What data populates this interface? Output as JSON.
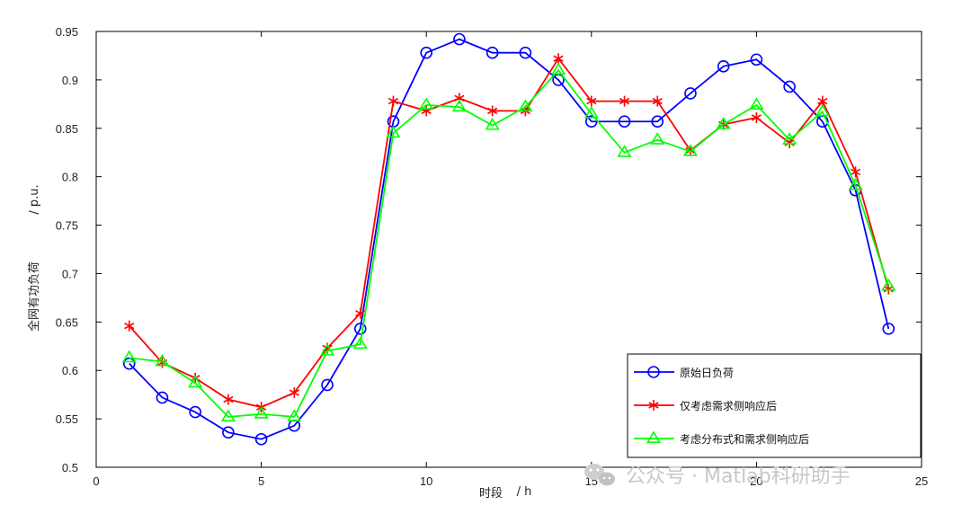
{
  "chart_data": {
    "type": "line",
    "xlabel_main": "时段",
    "xlabel_unit": "/ h",
    "ylabel_main": "全网有功负荷",
    "ylabel_unit": "/ p.u.",
    "xlim": [
      0,
      25
    ],
    "ylim": [
      0.5,
      0.95
    ],
    "xticks": [
      0,
      5,
      10,
      15,
      20,
      25
    ],
    "xtick_labels": [
      "0",
      "5",
      "10",
      "15",
      "20",
      "25"
    ],
    "yticks": [
      0.5,
      0.55,
      0.6,
      0.65,
      0.7,
      0.75,
      0.8,
      0.85,
      0.9,
      0.95
    ],
    "ytick_labels": [
      "0.5",
      "0.55",
      "0.6",
      "0.65",
      "0.7",
      "0.75",
      "0.8",
      "0.85",
      "0.9",
      "0.95"
    ],
    "grid": false,
    "legend_position": "bottom-right",
    "x": [
      1,
      2,
      3,
      4,
      5,
      6,
      7,
      8,
      9,
      10,
      11,
      12,
      13,
      14,
      15,
      16,
      17,
      18,
      19,
      20,
      21,
      22,
      23,
      24
    ],
    "series": [
      {
        "name": "原始日负荷",
        "color": "#0000ff",
        "marker": "circle",
        "values": [
          0.607,
          0.572,
          0.557,
          0.536,
          0.529,
          0.543,
          0.585,
          0.643,
          0.857,
          0.928,
          0.942,
          0.928,
          0.928,
          0.9,
          0.857,
          0.857,
          0.857,
          0.886,
          0.914,
          0.921,
          0.893,
          0.857,
          0.786,
          0.643
        ]
      },
      {
        "name": "仅考虑需求侧响应后",
        "color": "#ff0000",
        "marker": "asterisk",
        "values": [
          0.646,
          0.608,
          0.592,
          0.57,
          0.562,
          0.577,
          0.623,
          0.659,
          0.878,
          0.868,
          0.881,
          0.868,
          0.868,
          0.922,
          0.878,
          0.878,
          0.878,
          0.827,
          0.854,
          0.861,
          0.835,
          0.878,
          0.805,
          0.684
        ]
      },
      {
        "name": "考虑分布式和需求侧响应后",
        "color": "#00ff00",
        "marker": "triangle",
        "values": [
          0.613,
          0.609,
          0.587,
          0.552,
          0.555,
          0.552,
          0.62,
          0.627,
          0.845,
          0.874,
          0.872,
          0.853,
          0.872,
          0.91,
          0.865,
          0.825,
          0.838,
          0.826,
          0.854,
          0.874,
          0.838,
          0.867,
          0.791,
          0.687
        ]
      }
    ]
  },
  "watermark": {
    "text": "公众号 · Matlab科研助手",
    "icon": "wechat-icon"
  }
}
